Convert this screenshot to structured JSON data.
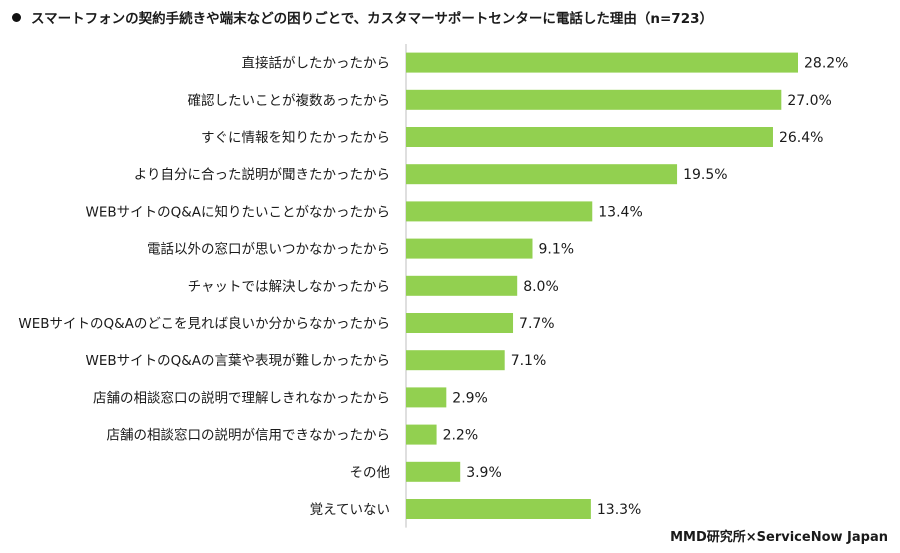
{
  "chart_data": {
    "type": "bar",
    "orientation": "horizontal",
    "title": "スマートフォンの契約手続きや端末などの困りごとで、カスタマーサポートセンターに電話した理由（n=723）",
    "categories": [
      "直接話がしたかったから",
      "確認したいことが複数あったから",
      "すぐに情報を知りたかったから",
      "より自分に合った説明が聞きたかったから",
      "WEBサイトのQ&Aに知りたいことがなかったから",
      "電話以外の窓口が思いつかなかったから",
      "チャットでは解決しなかったから",
      "WEBサイトのQ&Aのどこを見れば良いか分からなかったから",
      "WEBサイトのQ&Aの言葉や表現が難しかったから",
      "店舗の相談窓口の説明で理解しきれなかったから",
      "店舗の相談窓口の説明が信用できなかったから",
      "その他",
      "覚えていない"
    ],
    "values": [
      28.2,
      27.0,
      26.4,
      19.5,
      13.4,
      9.1,
      8.0,
      7.7,
      7.1,
      2.9,
      2.2,
      3.9,
      13.3
    ],
    "value_labels": [
      "28.2%",
      "27.0%",
      "26.4%",
      "19.5%",
      "13.4%",
      "9.1%",
      "8.0%",
      "7.7%",
      "7.1%",
      "2.9%",
      "2.2%",
      "3.9%",
      "13.3%"
    ],
    "xlim": [
      0,
      30
    ],
    "bar_color": "#92d050",
    "grid": false,
    "legend": "none"
  },
  "source": "MMD研究所×ServiceNow Japan"
}
